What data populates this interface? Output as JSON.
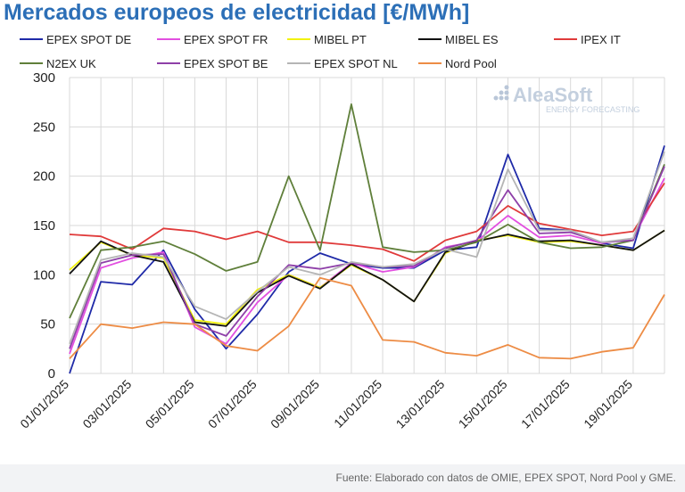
{
  "chart_data": {
    "type": "line",
    "title": "Mercados europeos de electricidad [€/MWh]",
    "xlabel": "",
    "ylabel": "",
    "ylim": [
      0,
      300
    ],
    "yticks": [
      "0",
      "50",
      "100",
      "150",
      "200",
      "250",
      "300"
    ],
    "x": [
      "01/01/2025",
      "02/01/2025",
      "03/01/2025",
      "04/01/2025",
      "05/01/2025",
      "06/01/2025",
      "07/01/2025",
      "08/01/2025",
      "09/01/2025",
      "10/01/2025",
      "11/01/2025",
      "12/01/2025",
      "13/01/2025",
      "14/01/2025",
      "15/01/2025",
      "16/01/2025",
      "17/01/2025",
      "18/01/2025",
      "19/01/2025",
      "20/01/2025"
    ],
    "x_tick_labels": [
      "01/01/2025",
      "03/01/2025",
      "05/01/2025",
      "07/01/2025",
      "09/01/2025",
      "11/01/2025",
      "13/01/2025",
      "15/01/2025",
      "17/01/2025",
      "19/01/2025"
    ],
    "series": [
      {
        "name": "EPEX SPOT DE",
        "color": "#1f2aa8",
        "values": [
          0,
          93,
          90,
          125,
          65,
          25,
          60,
          103,
          122,
          111,
          107,
          107,
          125,
          128,
          222,
          147,
          145,
          132,
          127,
          231
        ]
      },
      {
        "name": "EPEX SPOT FR",
        "color": "#e24fe0",
        "values": [
          20,
          107,
          117,
          123,
          47,
          30,
          72,
          100,
          87,
          112,
          103,
          108,
          128,
          134,
          160,
          138,
          140,
          132,
          137,
          198
        ]
      },
      {
        "name": "MIBEL PT",
        "color": "#f2f20f",
        "values": [
          105,
          133,
          120,
          117,
          54,
          50,
          85,
          100,
          87,
          110,
          95,
          73,
          122,
          135,
          140,
          133,
          134,
          130,
          125,
          145
        ]
      },
      {
        "name": "MIBEL ES",
        "color": "#111111",
        "values": [
          101,
          134,
          120,
          113,
          52,
          48,
          82,
          99,
          86,
          111,
          95,
          73,
          123,
          134,
          141,
          134,
          135,
          130,
          125,
          145
        ]
      },
      {
        "name": "IPEX IT",
        "color": "#e03a3a",
        "values": [
          141,
          139,
          126,
          147,
          144,
          136,
          144,
          133,
          133,
          130,
          126,
          114,
          135,
          144,
          170,
          152,
          146,
          140,
          144,
          193
        ]
      },
      {
        "name": "N2EX UK",
        "color": "#5f7f3a",
        "values": [
          56,
          125,
          128,
          134,
          121,
          104,
          113,
          200,
          125,
          273,
          128,
          123,
          125,
          133,
          151,
          133,
          127,
          128,
          135,
          212
        ]
      },
      {
        "name": "EPEX SPOT BE",
        "color": "#8e3fa8",
        "values": [
          25,
          112,
          120,
          121,
          50,
          38,
          78,
          110,
          106,
          112,
          108,
          109,
          127,
          135,
          186,
          142,
          143,
          133,
          135,
          210
        ]
      },
      {
        "name": "EPEX SPOT NL",
        "color": "#b5b5b5",
        "values": [
          30,
          115,
          122,
          118,
          68,
          55,
          83,
          108,
          100,
          113,
          108,
          111,
          126,
          118,
          207,
          145,
          145,
          133,
          137,
          225
        ]
      },
      {
        "name": "Nord Pool",
        "color": "#ed8c45",
        "values": [
          15,
          50,
          46,
          52,
          50,
          28,
          23,
          48,
          97,
          89,
          34,
          32,
          21,
          18,
          29,
          16,
          15,
          22,
          26,
          80
        ]
      }
    ]
  },
  "logo": {
    "name": "AleaSoft",
    "tagline": "ENERGY FORECASTING"
  },
  "footer": {
    "source": "Fuente: Elaborado con datos de OMIE, EPEX SPOT, Nord Pool y GME."
  }
}
